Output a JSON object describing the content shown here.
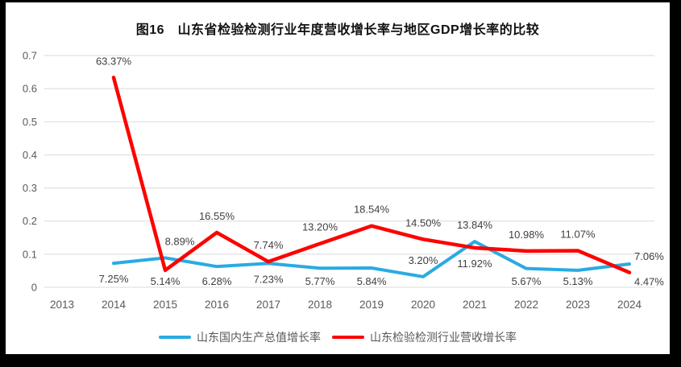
{
  "frame": {
    "background_color": "#000000",
    "panel_color": "#ffffff"
  },
  "colors": {
    "gridline": "#d9d9d9",
    "axis_text": "#595959",
    "label_text": "#404040",
    "title_text": "#111111",
    "gdp_line": "#29ABE2",
    "industry_line": "#FF0000"
  },
  "chart_data": {
    "type": "line",
    "title": "图16　山东省检验检测行业年度营收增长率与地区GDP增长率的比较",
    "xlabel": "",
    "ylabel": "",
    "ylim": [
      0,
      0.7
    ],
    "grid": true,
    "legend_position": "bottom",
    "categories": [
      "2013",
      "2014",
      "2015",
      "2016",
      "2017",
      "2018",
      "2019",
      "2020",
      "2021",
      "2022",
      "2023",
      "2024"
    ],
    "y_ticks": [
      "0",
      "0.1",
      "0.2",
      "0.3",
      "0.4",
      "0.5",
      "0.6",
      "0.7"
    ],
    "series": [
      {
        "name": "山东国内生产总值增长率",
        "color": "#29ABE2",
        "values_percent": [
          null,
          7.25,
          8.89,
          6.28,
          7.23,
          5.77,
          5.84,
          3.2,
          13.84,
          5.67,
          5.13,
          7.06
        ]
      },
      {
        "name": "山东检验检测行业营收增长率",
        "color": "#FF0000",
        "values_percent": [
          null,
          63.37,
          5.14,
          16.55,
          7.74,
          13.2,
          18.54,
          14.5,
          11.92,
          10.98,
          11.07,
          4.47
        ]
      }
    ],
    "data_labels": [
      {
        "year": "2014",
        "series": 1,
        "text": "63.37%",
        "pos": "above"
      },
      {
        "year": "2014",
        "series": 0,
        "text": "7.25%",
        "pos": "below"
      },
      {
        "year": "2015",
        "series": 0,
        "text": "8.89%",
        "pos": "above",
        "dx": 18
      },
      {
        "year": "2015",
        "series": 1,
        "text": "5.14%",
        "pos": "below"
      },
      {
        "year": "2016",
        "series": 1,
        "text": "16.55%",
        "pos": "above"
      },
      {
        "year": "2016",
        "series": 0,
        "text": "6.28%",
        "pos": "below"
      },
      {
        "year": "2017",
        "series": 1,
        "text": "7.74%",
        "pos": "above"
      },
      {
        "year": "2017",
        "series": 0,
        "text": "7.23%",
        "pos": "below"
      },
      {
        "year": "2018",
        "series": 1,
        "text": "13.20%",
        "pos": "above"
      },
      {
        "year": "2018",
        "series": 0,
        "text": "5.77%",
        "pos": "below"
      },
      {
        "year": "2019",
        "series": 1,
        "text": "18.54%",
        "pos": "above"
      },
      {
        "year": "2019",
        "series": 0,
        "text": "5.84%",
        "pos": "below"
      },
      {
        "year": "2020",
        "series": 1,
        "text": "14.50%",
        "pos": "above"
      },
      {
        "year": "2020",
        "series": 0,
        "text": "3.20%",
        "pos": "above"
      },
      {
        "year": "2021",
        "series": 0,
        "text": "13.84%",
        "pos": "above"
      },
      {
        "year": "2021",
        "series": 1,
        "text": "11.92%",
        "pos": "below"
      },
      {
        "year": "2022",
        "series": 1,
        "text": "10.98%",
        "pos": "above"
      },
      {
        "year": "2022",
        "series": 0,
        "text": "5.67%",
        "pos": "below"
      },
      {
        "year": "2023",
        "series": 1,
        "text": "11.07%",
        "pos": "above"
      },
      {
        "year": "2023",
        "series": 0,
        "text": "5.13%",
        "pos": "below"
      },
      {
        "year": "2024",
        "series": 0,
        "text": "7.06%",
        "pos": "right-above"
      },
      {
        "year": "2024",
        "series": 1,
        "text": "4.47%",
        "pos": "right-below"
      }
    ]
  }
}
